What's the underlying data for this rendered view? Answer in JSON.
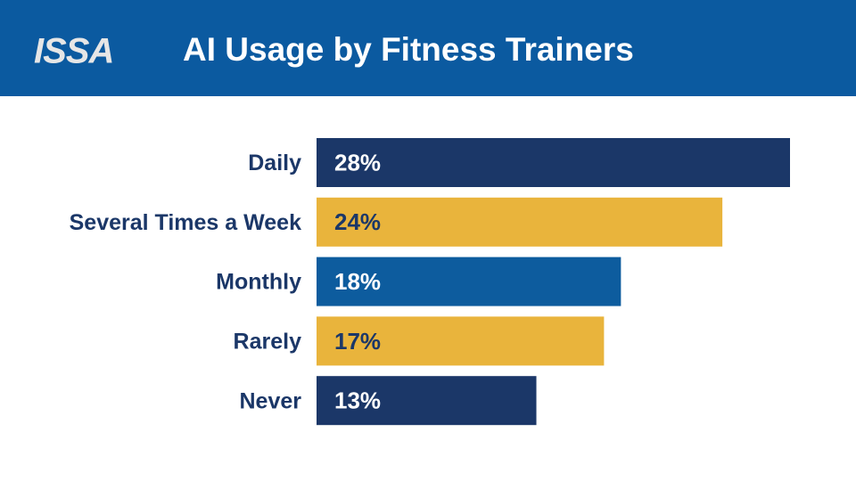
{
  "header": {
    "logo": "ISSA"
  },
  "chart_data": {
    "type": "bar",
    "orientation": "horizontal",
    "title": "AI Usage by Fitness Trainers",
    "categories": [
      "Daily",
      "Several Times a Week",
      "Monthly",
      "Rarely",
      "Never"
    ],
    "values": [
      28,
      24,
      18,
      17,
      13
    ],
    "value_labels": [
      "28%",
      "24%",
      "18%",
      "17%",
      "13%"
    ],
    "colors": [
      "#1b3768",
      "#e9b43c",
      "#0d5c9e",
      "#e9b43c",
      "#1b3768"
    ]
  }
}
